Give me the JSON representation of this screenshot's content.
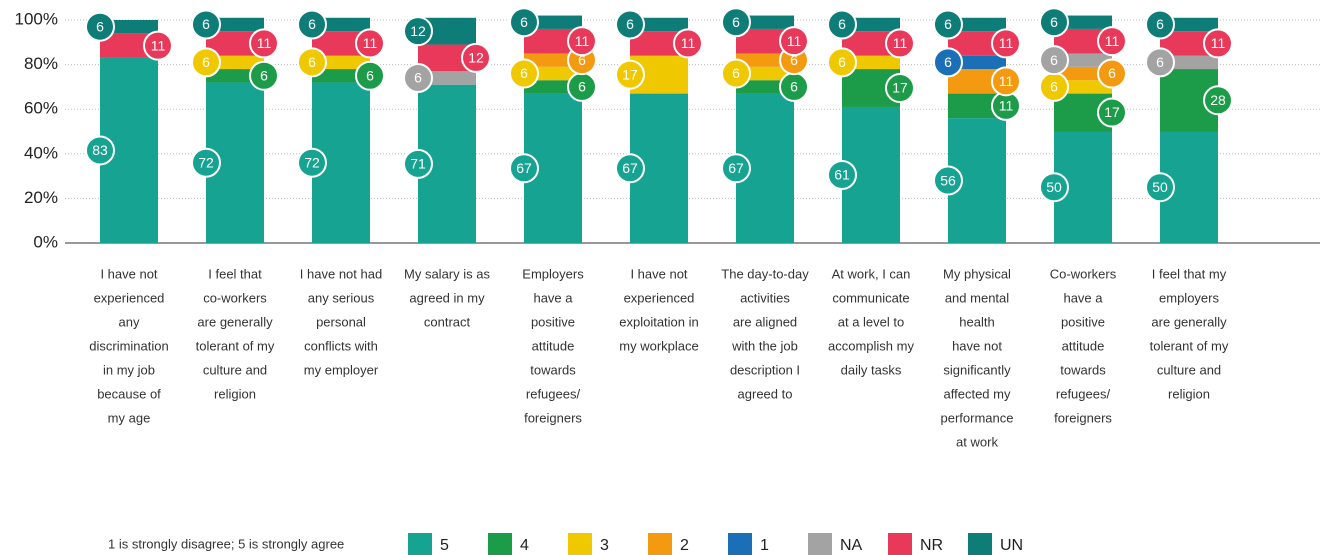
{
  "chart_data": {
    "type": "stacked-bar",
    "categories": [
      [
        "I have not",
        "experienced",
        "any",
        "discrimination",
        "in my job",
        "because of",
        "my age"
      ],
      [
        "I feel that",
        "co-workers",
        "are generally",
        "tolerant of my",
        "culture and",
        "religion"
      ],
      [
        "I have not had",
        "any serious",
        "personal",
        "conflicts with",
        "my employer"
      ],
      [
        "My salary is as",
        "agreed in my",
        "contract"
      ],
      [
        "Employers",
        "have a",
        "positive",
        "attitude",
        "towards",
        "refugees/",
        "foreigners"
      ],
      [
        "I have not",
        "experienced",
        "exploitation in",
        "my workplace"
      ],
      [
        "The day-to-day",
        "activities",
        "are aligned",
        "with the job",
        "description I",
        "agreed to"
      ],
      [
        "At work, I can",
        "communicate",
        "at a level to",
        "accomplish my",
        "daily tasks"
      ],
      [
        "My physical",
        "and mental",
        "health",
        "have not",
        "significantly",
        "affected my",
        "performance",
        "at work"
      ],
      [
        "Co-workers",
        "have a",
        "positive",
        "attitude",
        "towards",
        "refugees/",
        "foreigners"
      ],
      [
        "I feel that my",
        "employers",
        "are generally",
        "tolerant of my",
        "culture and",
        "religion"
      ]
    ],
    "series": [
      {
        "name": "5",
        "color": "#16a391",
        "values": [
          83,
          72,
          72,
          71,
          67,
          67,
          67,
          61,
          56,
          50,
          50
        ]
      },
      {
        "name": "4",
        "color": "#1c9b48",
        "values": [
          null,
          6,
          6,
          null,
          6,
          null,
          6,
          17,
          11,
          17,
          28
        ]
      },
      {
        "name": "3",
        "color": "#f0c800",
        "values": [
          null,
          6,
          6,
          null,
          6,
          17,
          6,
          6,
          null,
          6,
          null
        ]
      },
      {
        "name": "2",
        "color": "#f39a11",
        "values": [
          null,
          null,
          null,
          null,
          6,
          null,
          6,
          null,
          11,
          6,
          null
        ]
      },
      {
        "name": "1",
        "color": "#1b6fb6",
        "values": [
          null,
          null,
          null,
          null,
          null,
          null,
          null,
          null,
          6,
          null,
          null
        ]
      },
      {
        "name": "NA",
        "color": "#a3a3a3",
        "values": [
          null,
          null,
          null,
          6,
          null,
          null,
          null,
          null,
          null,
          6,
          6
        ]
      },
      {
        "name": "NR",
        "color": "#e8395b",
        "values": [
          11,
          11,
          11,
          12,
          11,
          11,
          11,
          11,
          11,
          11,
          11
        ]
      },
      {
        "name": "UN",
        "color": "#0e7d78",
        "values": [
          6,
          6,
          6,
          12,
          6,
          6,
          6,
          6,
          6,
          6,
          6
        ]
      }
    ],
    "ylim": [
      0,
      100
    ],
    "yticks": [
      {
        "value": 0,
        "label": "0%"
      },
      {
        "value": 20,
        "label": "20%"
      },
      {
        "value": 40,
        "label": "40%"
      },
      {
        "value": 60,
        "label": "60%"
      },
      {
        "value": 80,
        "label": "80%"
      },
      {
        "value": 100,
        "label": "100%"
      }
    ],
    "grid": true,
    "legend_note": "1 is strongly disagree; 5 is strongly agree"
  }
}
